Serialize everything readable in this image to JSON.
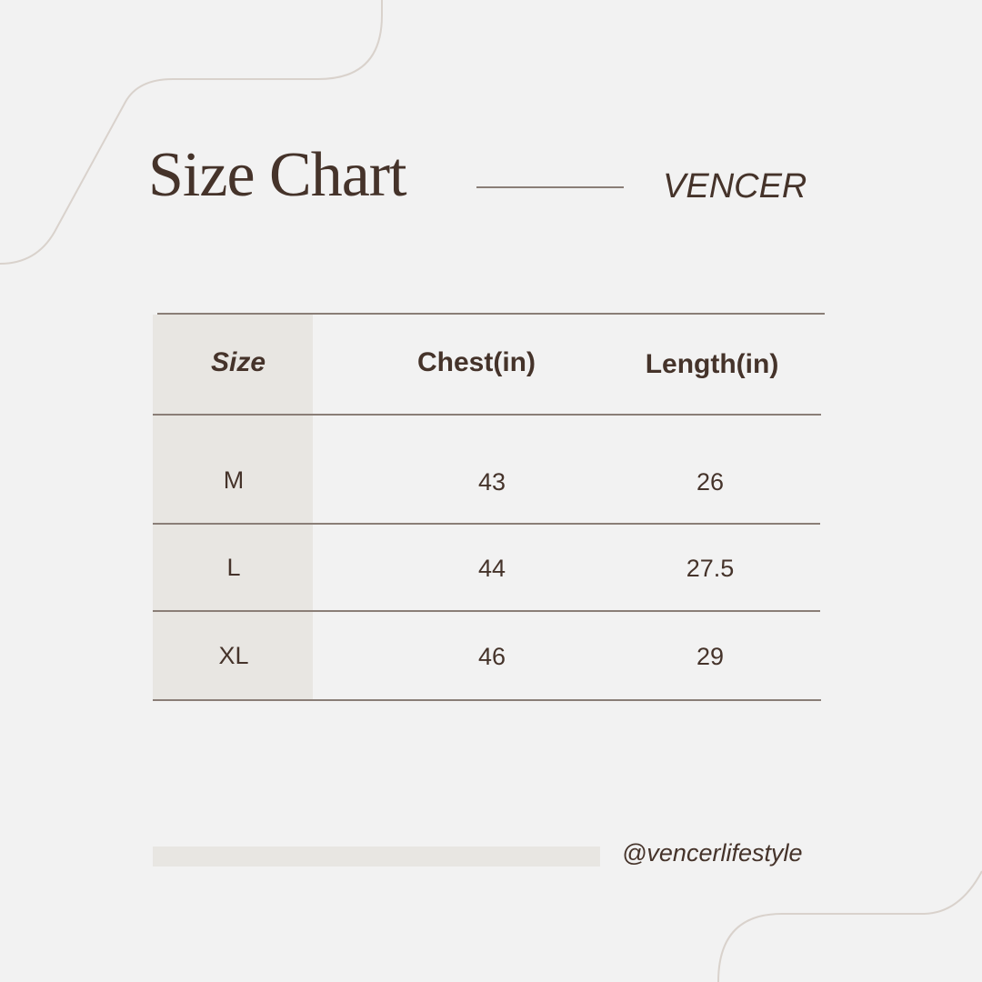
{
  "header": {
    "title": "Size Chart",
    "brand": "VENCER"
  },
  "table": {
    "columns": [
      "Size",
      "Chest(in)",
      "Length(in)"
    ],
    "rows": [
      [
        "M",
        "43",
        "26"
      ],
      [
        "L",
        "44",
        "27.5"
      ],
      [
        "XL",
        "46",
        "29"
      ]
    ]
  },
  "footer": {
    "handle": "@vencerlifestyle"
  },
  "colors": {
    "background": "#f2f2f2",
    "text": "#45332a",
    "rule": "#8a7e77",
    "highlight": "#e8e6e2",
    "decor": "#d9d2cc"
  }
}
